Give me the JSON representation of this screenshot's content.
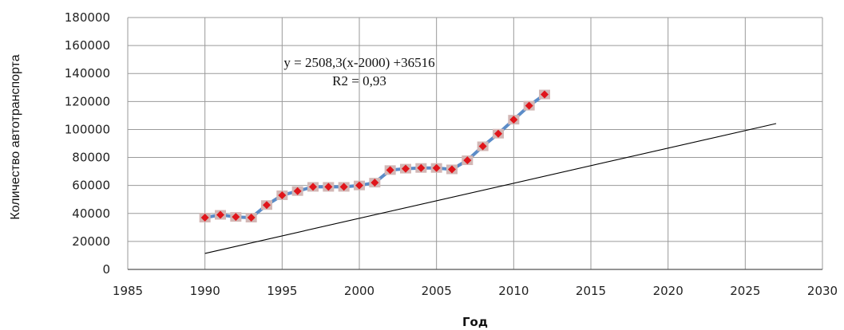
{
  "chart_data": {
    "type": "scatter",
    "title": "",
    "xlabel": "Год",
    "ylabel": "Количество автотранспорта",
    "xlim": [
      1985,
      2030
    ],
    "ylim": [
      0,
      180000
    ],
    "x_ticks": [
      1985,
      1990,
      1995,
      2000,
      2005,
      2010,
      2015,
      2020,
      2025,
      2030
    ],
    "y_ticks": [
      0,
      20000,
      40000,
      60000,
      80000,
      100000,
      120000,
      140000,
      160000,
      180000
    ],
    "grid": true,
    "legend": "none",
    "series": [
      {
        "type": "line+markers",
        "x": [
          1990,
          1991,
          1992,
          1993,
          1994,
          1995,
          1996,
          1997,
          1998,
          1999,
          2000,
          2001,
          2002,
          2003,
          2004,
          2005,
          2006,
          2007,
          2008,
          2009,
          2010,
          2011,
          2012
        ],
        "values": [
          37000,
          39000,
          37500,
          37000,
          46000,
          53000,
          56000,
          59000,
          59000,
          59000,
          60000,
          62000,
          71000,
          72000,
          72500,
          72500,
          71500,
          78000,
          88000,
          97000,
          107000,
          117000,
          125000
        ],
        "line_color": "#5b8cc8",
        "marker_fill": "#e0151b",
        "marker_edge": "#d2b7b5"
      }
    ],
    "trendline": {
      "slope": 2508.3,
      "x0": 2000,
      "intercept": 36516,
      "x_start": 1990,
      "x_end": 2027,
      "color": "#000000"
    },
    "annotations": {
      "equation": "y = 2508,3(x-2000) +36516",
      "r2": "R2 = 0,93"
    }
  }
}
